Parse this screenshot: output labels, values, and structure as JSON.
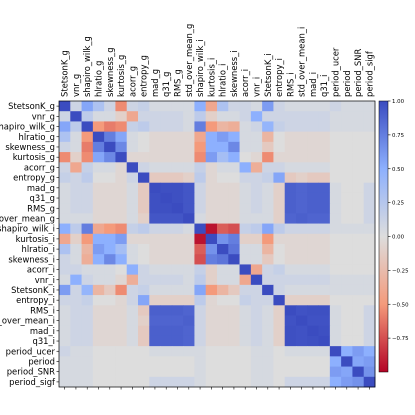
{
  "chart_data": {
    "type": "heatmap",
    "labels": [
      "StetsonK_g",
      "vnr_g",
      "shapiro_wilk_g",
      "hlratio_g",
      "skewness_g",
      "kurtosis_g",
      "acorr_g",
      "entropy_g",
      "mad_g",
      "q31_g",
      "RMS_g",
      "std_over_mean_g",
      "shapiro_wilk_i",
      "kurtosis_i",
      "hlratio_i",
      "skewness_i",
      "acorr_i",
      "vnr_i",
      "StetsonK_i",
      "entropy_i",
      "RMS_i",
      "std_over_mean_i",
      "mad_i",
      "q31_i",
      "period_ucer",
      "period",
      "period_SNR",
      "period_sigf"
    ],
    "colorbar": {
      "min": -1.0,
      "max": 1.0,
      "ticks": [
        1.0,
        0.75,
        0.5,
        0.25,
        0.0,
        -0.25,
        -0.5,
        -0.75
      ],
      "tick_labels": [
        "1.00",
        "0.75",
        "0.50",
        "0.25",
        "0.00",
        "−0.25",
        "−0.50",
        "−0.75"
      ],
      "colormap": "coolwarm_r",
      "colors": {
        "neg": "#b40426",
        "zero": "#dddddd",
        "pos": "#3b4cc0"
      }
    },
    "groups": {
      "g_shape": [
        2,
        3,
        4,
        5
      ],
      "g_scale": [
        8,
        9,
        10,
        11
      ],
      "i_shape": [
        12,
        13,
        14,
        15
      ],
      "i_scale": [
        20,
        21,
        22,
        23
      ],
      "periods": [
        24,
        25,
        26,
        27
      ]
    },
    "values": [
      [
        1.0,
        0.1,
        0.55,
        0.3,
        0.1,
        -0.55,
        0.1,
        0.15,
        0.05,
        0.05,
        0.05,
        0.05,
        0.5,
        -0.4,
        0.3,
        0.1,
        0.1,
        0.05,
        0.6,
        0.1,
        0.05,
        0.05,
        0.05,
        0.05,
        0.1,
        0.05,
        0.05,
        0.05
      ],
      [
        0.1,
        1.0,
        0.2,
        0.05,
        0.05,
        -0.1,
        -0.4,
        0.1,
        0.1,
        0.1,
        0.1,
        0.05,
        0.2,
        -0.1,
        0.05,
        0.05,
        0.1,
        0.5,
        0.1,
        0.1,
        0.1,
        0.1,
        0.1,
        0.1,
        0.05,
        0.05,
        0.05,
        0.05
      ],
      [
        0.55,
        0.2,
        1.0,
        -0.5,
        -0.6,
        -0.55,
        0.15,
        0.2,
        0.1,
        0.1,
        0.1,
        0.05,
        0.75,
        -0.5,
        -0.3,
        -0.35,
        0.05,
        0.1,
        0.45,
        0.15,
        0.1,
        0.1,
        0.1,
        0.1,
        0.05,
        0.05,
        0.05,
        0.05
      ],
      [
        0.3,
        0.05,
        -0.5,
        1.0,
        0.75,
        0.55,
        0.05,
        0.0,
        -0.05,
        -0.05,
        -0.05,
        -0.05,
        -0.4,
        0.5,
        0.6,
        0.5,
        0.05,
        0.05,
        -0.3,
        0.0,
        -0.05,
        -0.05,
        -0.05,
        -0.05,
        0.0,
        0.0,
        0.0,
        0.0
      ],
      [
        0.1,
        0.05,
        -0.6,
        0.75,
        1.0,
        0.7,
        0.05,
        0.0,
        -0.05,
        -0.05,
        -0.05,
        -0.05,
        -0.5,
        0.5,
        0.5,
        0.7,
        0.05,
        0.05,
        -0.15,
        0.0,
        -0.05,
        -0.05,
        -0.05,
        -0.05,
        0.0,
        0.0,
        0.0,
        0.0
      ],
      [
        -0.55,
        -0.1,
        -0.55,
        0.55,
        0.7,
        1.0,
        -0.05,
        -0.05,
        -0.05,
        -0.05,
        -0.05,
        -0.05,
        -0.55,
        0.6,
        0.35,
        0.5,
        0.0,
        -0.05,
        -0.55,
        -0.05,
        -0.05,
        -0.05,
        -0.05,
        -0.05,
        0.0,
        0.0,
        0.0,
        0.0
      ],
      [
        0.1,
        -0.4,
        0.15,
        0.05,
        0.05,
        -0.05,
        1.0,
        0.1,
        0.05,
        0.05,
        0.05,
        0.05,
        0.15,
        -0.05,
        0.05,
        0.05,
        0.5,
        -0.35,
        0.1,
        0.1,
        0.05,
        0.05,
        0.05,
        0.05,
        0.0,
        0.0,
        0.0,
        0.0
      ],
      [
        0.15,
        0.1,
        0.2,
        0.0,
        0.0,
        -0.05,
        0.1,
        1.0,
        -0.15,
        -0.15,
        -0.15,
        -0.1,
        0.2,
        -0.05,
        0.0,
        0.0,
        0.1,
        0.1,
        0.15,
        0.55,
        -0.15,
        -0.1,
        -0.15,
        -0.15,
        0.0,
        0.0,
        0.0,
        0.0
      ],
      [
        0.05,
        0.1,
        0.1,
        -0.05,
        -0.05,
        -0.05,
        0.05,
        -0.15,
        1.0,
        0.98,
        0.98,
        0.95,
        0.1,
        -0.05,
        -0.05,
        -0.05,
        0.05,
        0.1,
        0.05,
        -0.1,
        0.9,
        0.88,
        0.9,
        0.9,
        0.05,
        0.0,
        0.0,
        0.1
      ],
      [
        0.05,
        0.1,
        0.1,
        -0.05,
        -0.05,
        -0.05,
        0.05,
        -0.15,
        0.98,
        1.0,
        0.98,
        0.95,
        0.1,
        -0.05,
        -0.05,
        -0.05,
        0.05,
        0.1,
        0.05,
        -0.1,
        0.9,
        0.88,
        0.9,
        0.9,
        0.05,
        0.0,
        0.0,
        0.1
      ],
      [
        0.05,
        0.1,
        0.1,
        -0.05,
        -0.05,
        -0.05,
        0.05,
        -0.15,
        0.98,
        0.98,
        1.0,
        0.95,
        0.1,
        -0.05,
        -0.05,
        -0.05,
        0.05,
        0.1,
        0.05,
        -0.1,
        0.9,
        0.88,
        0.9,
        0.9,
        0.05,
        0.0,
        0.0,
        0.1
      ],
      [
        0.05,
        0.05,
        0.05,
        -0.05,
        -0.05,
        -0.05,
        0.05,
        -0.1,
        0.95,
        0.95,
        0.95,
        1.0,
        0.05,
        -0.05,
        -0.05,
        -0.05,
        0.05,
        0.05,
        0.05,
        -0.1,
        0.88,
        0.9,
        0.88,
        0.88,
        0.05,
        0.0,
        0.0,
        0.1
      ],
      [
        0.5,
        0.2,
        0.75,
        -0.4,
        -0.5,
        -0.55,
        0.15,
        0.2,
        0.1,
        0.1,
        0.1,
        0.05,
        1.0,
        -0.95,
        -0.7,
        -0.75,
        0.15,
        0.2,
        0.55,
        0.2,
        0.1,
        0.1,
        0.1,
        0.1,
        0.05,
        0.05,
        0.05,
        0.05
      ],
      [
        -0.4,
        -0.1,
        -0.5,
        0.5,
        0.5,
        0.6,
        -0.05,
        -0.05,
        -0.05,
        -0.05,
        -0.05,
        -0.05,
        -0.95,
        1.0,
        0.65,
        0.75,
        -0.1,
        -0.1,
        -0.5,
        -0.05,
        -0.05,
        -0.05,
        -0.05,
        -0.05,
        0.0,
        0.0,
        0.0,
        0.0
      ],
      [
        0.3,
        0.05,
        -0.3,
        0.6,
        0.5,
        0.35,
        0.05,
        0.0,
        -0.05,
        -0.05,
        -0.05,
        -0.05,
        -0.7,
        0.65,
        1.0,
        0.8,
        0.05,
        0.05,
        -0.3,
        0.0,
        -0.05,
        -0.05,
        -0.05,
        -0.05,
        0.0,
        0.0,
        0.0,
        0.0
      ],
      [
        0.1,
        0.05,
        -0.35,
        0.5,
        0.7,
        0.5,
        0.05,
        0.0,
        -0.05,
        -0.05,
        -0.05,
        -0.05,
        -0.75,
        0.75,
        0.8,
        1.0,
        0.05,
        0.05,
        -0.15,
        0.0,
        -0.05,
        -0.05,
        -0.05,
        -0.05,
        0.0,
        0.0,
        0.0,
        0.0
      ],
      [
        0.1,
        0.1,
        0.05,
        0.05,
        0.05,
        0.0,
        0.5,
        0.1,
        0.05,
        0.05,
        0.05,
        0.05,
        0.15,
        -0.1,
        0.05,
        0.05,
        1.0,
        -0.4,
        0.1,
        0.15,
        0.05,
        0.05,
        0.05,
        0.05,
        0.0,
        0.0,
        0.0,
        0.0
      ],
      [
        0.05,
        0.5,
        0.1,
        0.05,
        0.05,
        -0.05,
        -0.35,
        0.1,
        0.1,
        0.1,
        0.1,
        0.05,
        0.2,
        -0.1,
        0.05,
        0.05,
        -0.4,
        1.0,
        0.1,
        0.1,
        0.1,
        0.1,
        0.1,
        0.1,
        0.05,
        0.05,
        0.05,
        0.05
      ],
      [
        0.6,
        0.1,
        0.45,
        -0.3,
        -0.15,
        -0.55,
        0.1,
        0.15,
        0.05,
        0.05,
        0.05,
        0.05,
        0.55,
        -0.5,
        -0.3,
        -0.15,
        0.1,
        0.1,
        1.0,
        0.1,
        0.05,
        0.05,
        0.05,
        0.05,
        0.05,
        0.05,
        0.05,
        0.05
      ],
      [
        0.1,
        0.1,
        0.15,
        0.0,
        0.0,
        -0.05,
        0.1,
        0.55,
        -0.1,
        -0.1,
        -0.1,
        -0.1,
        0.2,
        -0.05,
        0.0,
        0.0,
        0.15,
        0.1,
        0.1,
        1.0,
        -0.1,
        -0.1,
        -0.1,
        -0.1,
        0.0,
        0.0,
        0.0,
        0.0
      ],
      [
        0.05,
        0.1,
        0.1,
        -0.05,
        -0.05,
        -0.05,
        0.05,
        -0.15,
        0.9,
        0.9,
        0.9,
        0.88,
        0.1,
        -0.05,
        -0.05,
        -0.05,
        0.05,
        0.1,
        0.05,
        -0.1,
        1.0,
        0.97,
        0.98,
        0.98,
        0.05,
        0.0,
        0.0,
        0.1
      ],
      [
        0.05,
        0.1,
        0.1,
        -0.05,
        -0.05,
        -0.05,
        0.05,
        -0.1,
        0.88,
        0.88,
        0.88,
        0.9,
        0.1,
        -0.05,
        -0.05,
        -0.05,
        0.05,
        0.1,
        0.05,
        -0.1,
        0.97,
        1.0,
        0.97,
        0.97,
        0.05,
        0.0,
        0.0,
        0.1
      ],
      [
        0.05,
        0.1,
        0.1,
        -0.05,
        -0.05,
        -0.05,
        0.05,
        -0.15,
        0.9,
        0.9,
        0.9,
        0.88,
        0.1,
        -0.05,
        -0.05,
        -0.05,
        0.05,
        0.1,
        0.05,
        -0.1,
        0.98,
        0.97,
        1.0,
        0.98,
        0.05,
        0.0,
        0.0,
        0.1
      ],
      [
        0.05,
        0.1,
        0.1,
        -0.05,
        -0.05,
        -0.05,
        0.05,
        -0.15,
        0.9,
        0.9,
        0.9,
        0.88,
        0.1,
        -0.05,
        -0.05,
        -0.05,
        0.05,
        0.1,
        0.05,
        -0.1,
        0.98,
        0.97,
        0.98,
        1.0,
        0.05,
        0.0,
        0.0,
        0.1
      ],
      [
        0.1,
        0.05,
        0.05,
        0.0,
        0.0,
        0.0,
        0.0,
        0.0,
        0.05,
        0.05,
        0.05,
        0.05,
        0.05,
        0.0,
        0.0,
        0.0,
        0.0,
        0.05,
        0.05,
        0.0,
        0.05,
        0.05,
        0.05,
        0.05,
        1.0,
        0.5,
        0.6,
        0.5
      ],
      [
        0.05,
        0.05,
        0.05,
        0.0,
        0.0,
        0.0,
        0.0,
        0.0,
        0.0,
        0.0,
        0.0,
        0.0,
        0.05,
        0.0,
        0.0,
        0.0,
        0.0,
        0.05,
        0.05,
        0.0,
        0.0,
        0.0,
        0.0,
        0.0,
        0.5,
        1.0,
        0.55,
        0.6
      ],
      [
        0.05,
        0.05,
        0.05,
        0.0,
        0.0,
        0.0,
        0.0,
        0.0,
        0.0,
        0.0,
        0.0,
        0.0,
        0.05,
        0.0,
        0.0,
        0.0,
        0.0,
        0.05,
        0.05,
        0.0,
        0.0,
        0.0,
        0.0,
        0.0,
        0.6,
        0.55,
        1.0,
        0.65
      ],
      [
        0.05,
        0.05,
        0.05,
        0.0,
        0.0,
        0.0,
        0.0,
        0.0,
        0.1,
        0.1,
        0.1,
        0.1,
        0.05,
        0.0,
        0.0,
        0.0,
        0.0,
        0.05,
        0.05,
        0.0,
        0.1,
        0.1,
        0.1,
        0.1,
        0.5,
        0.6,
        0.65,
        1.0
      ]
    ]
  }
}
